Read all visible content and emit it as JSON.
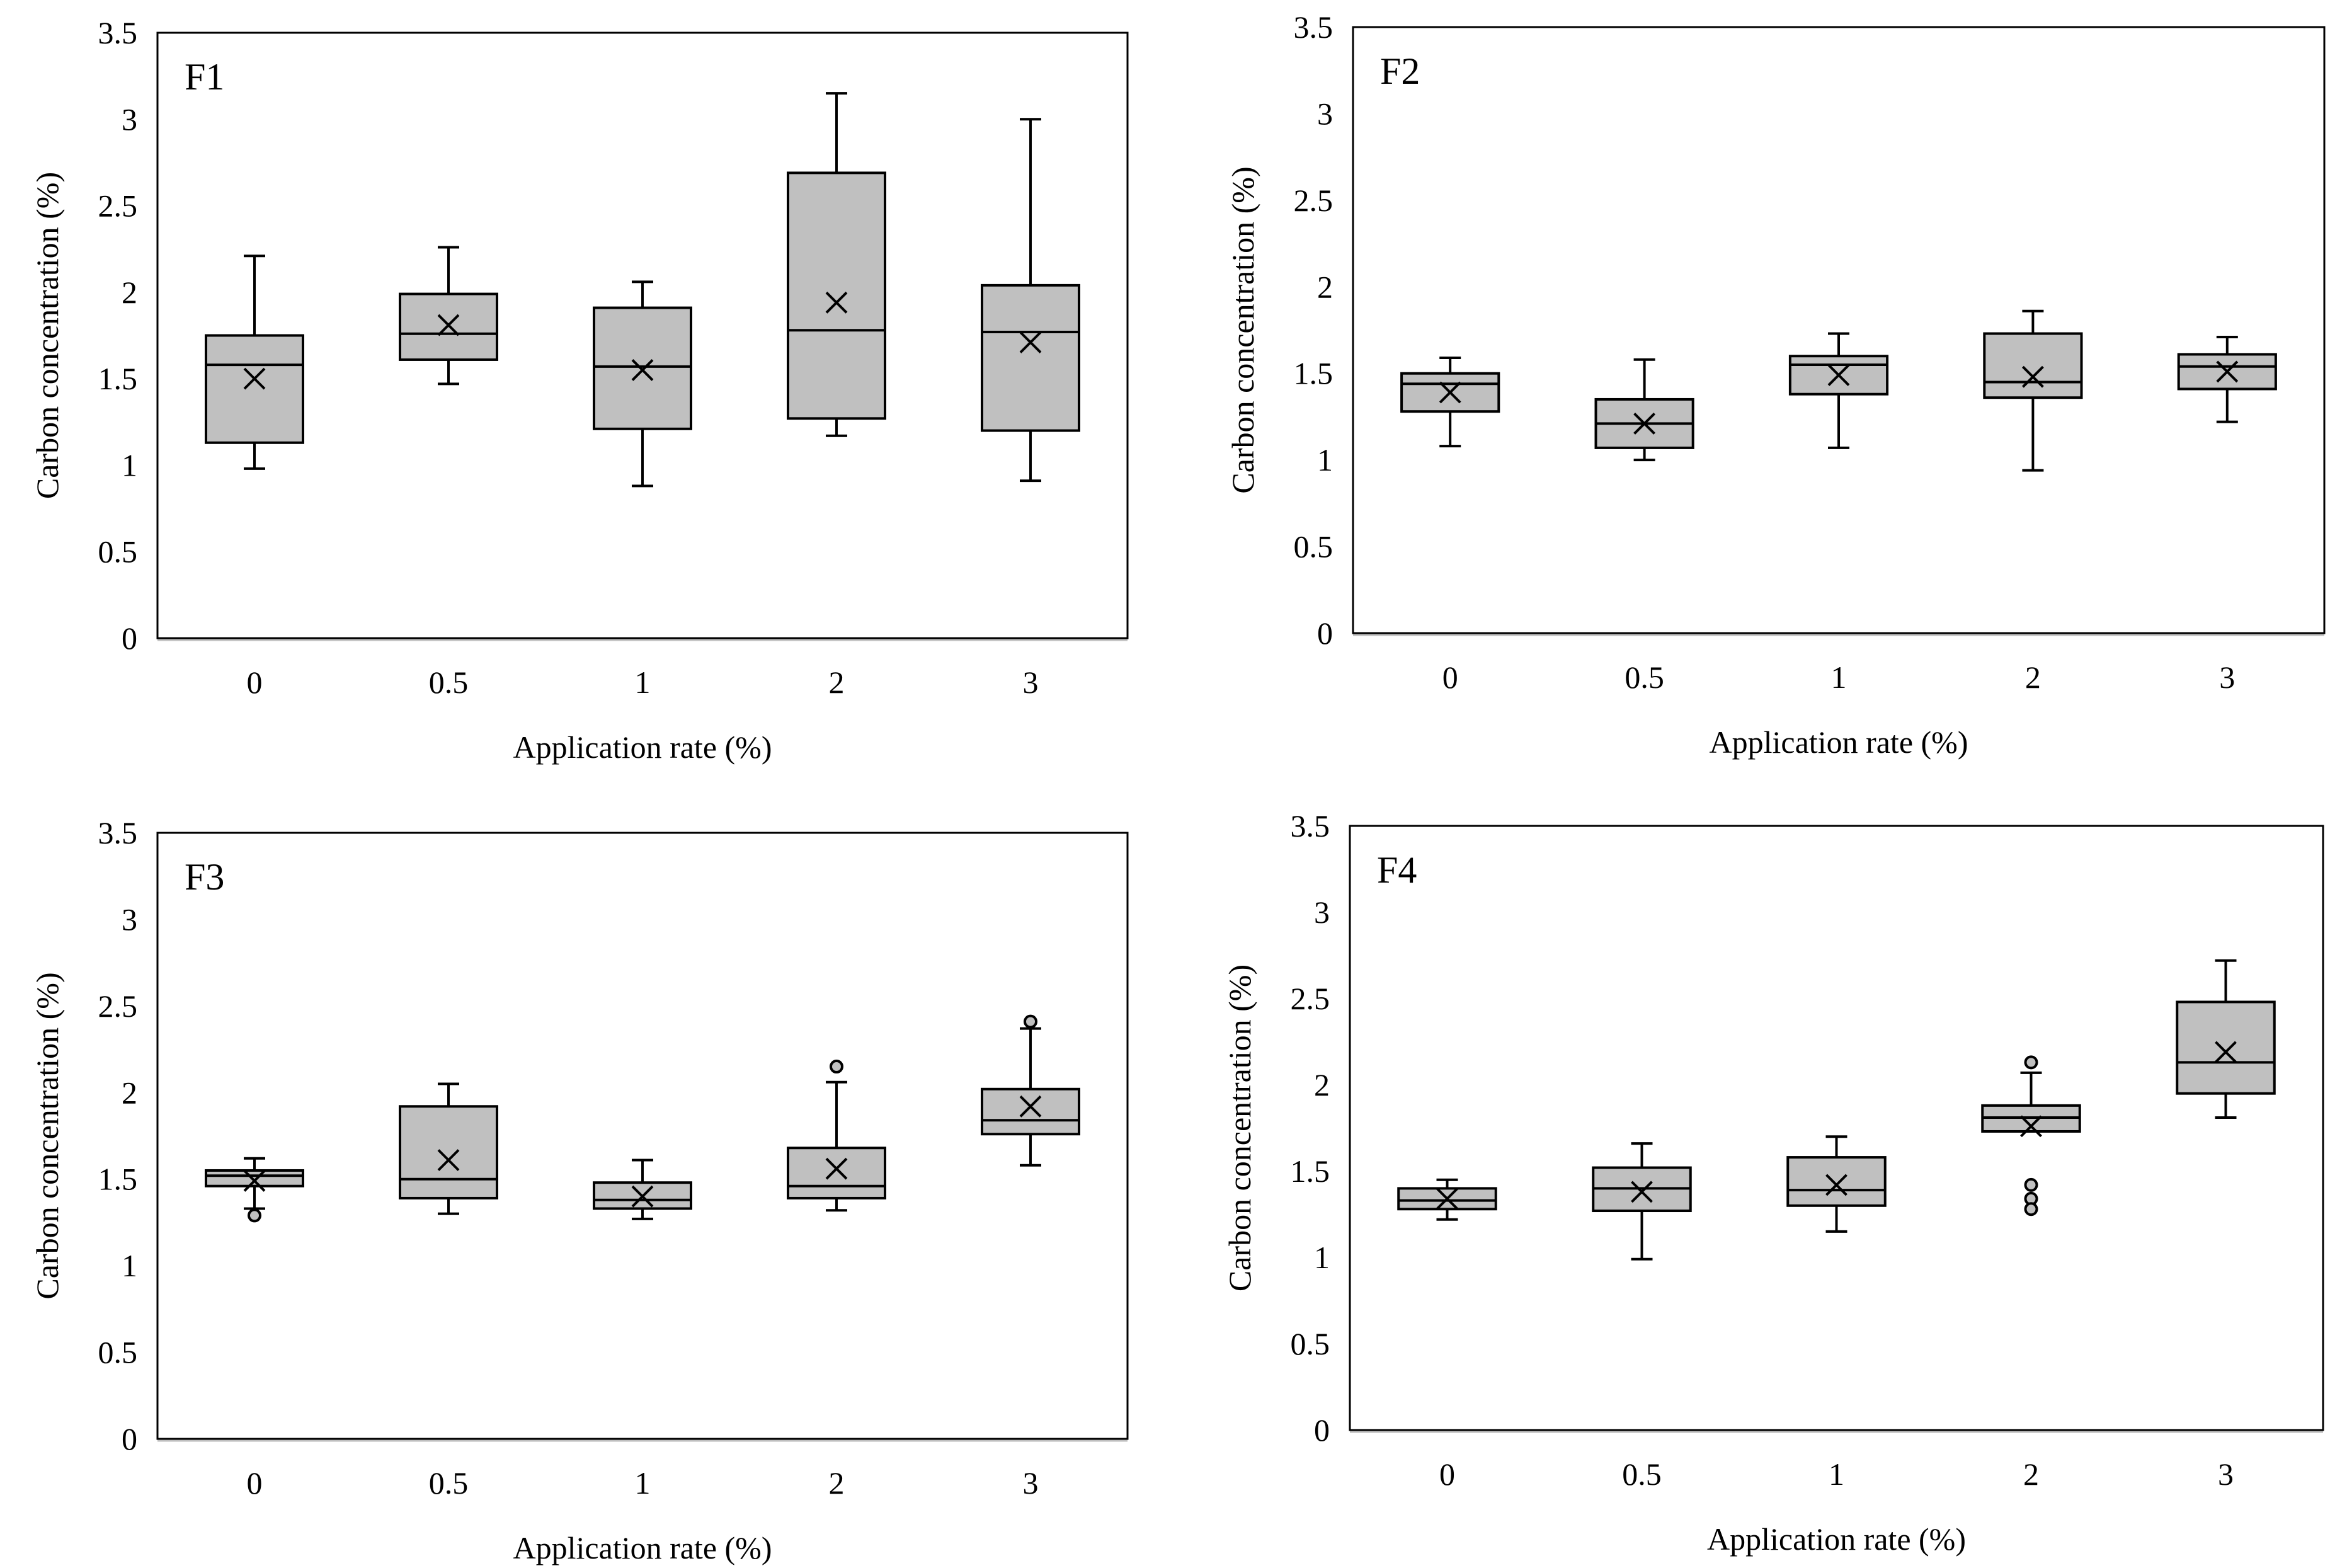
{
  "figure": {
    "box_fill": "#c0c0c0",
    "stroke_color": "#000000",
    "background": "#ffffff"
  },
  "chart_data": [
    {
      "type": "box",
      "panel": "F1",
      "xlabel": "Application rate (%)",
      "ylabel": "Carbon concentration (%)",
      "ylim": [
        0,
        3.5
      ],
      "yticks": [
        "0",
        "0.5",
        "1",
        "1.5",
        "2",
        "2.5",
        "3",
        "3.5"
      ],
      "categories": [
        "0",
        "0.5",
        "1",
        "2",
        "3"
      ],
      "boxes": [
        {
          "category": "0",
          "whisker_low": 0.98,
          "q1": 1.13,
          "median": 1.58,
          "q3": 1.75,
          "whisker_high": 2.21,
          "mean": 1.5,
          "outliers": []
        },
        {
          "category": "0.5",
          "whisker_low": 1.47,
          "q1": 1.61,
          "median": 1.76,
          "q3": 1.99,
          "whisker_high": 2.26,
          "mean": 1.81,
          "outliers": []
        },
        {
          "category": "1",
          "whisker_low": 0.88,
          "q1": 1.21,
          "median": 1.57,
          "q3": 1.91,
          "whisker_high": 2.06,
          "mean": 1.55,
          "outliers": []
        },
        {
          "category": "2",
          "whisker_low": 1.17,
          "q1": 1.27,
          "median": 1.78,
          "q3": 2.69,
          "whisker_high": 3.15,
          "mean": 1.94,
          "outliers": []
        },
        {
          "category": "3",
          "whisker_low": 0.91,
          "q1": 1.2,
          "median": 1.77,
          "q3": 2.04,
          "whisker_high": 3.0,
          "mean": 1.71,
          "outliers": []
        }
      ]
    },
    {
      "type": "box",
      "panel": "F2",
      "xlabel": "Application rate (%)",
      "ylabel": "Carbon concentration (%)",
      "ylim": [
        0,
        3.5
      ],
      "yticks": [
        "0",
        "0.5",
        "1",
        "1.5",
        "2",
        "2.5",
        "3",
        "3.5"
      ],
      "categories": [
        "0",
        "0.5",
        "1",
        "2",
        "3"
      ],
      "boxes": [
        {
          "category": "0",
          "whisker_low": 1.08,
          "q1": 1.28,
          "median": 1.44,
          "q3": 1.5,
          "whisker_high": 1.59,
          "mean": 1.39,
          "outliers": []
        },
        {
          "category": "0.5",
          "whisker_low": 1.0,
          "q1": 1.07,
          "median": 1.21,
          "q3": 1.35,
          "whisker_high": 1.58,
          "mean": 1.21,
          "outliers": []
        },
        {
          "category": "1",
          "whisker_low": 1.07,
          "q1": 1.38,
          "median": 1.55,
          "q3": 1.6,
          "whisker_high": 1.73,
          "mean": 1.49,
          "outliers": []
        },
        {
          "category": "2",
          "whisker_low": 0.94,
          "q1": 1.36,
          "median": 1.45,
          "q3": 1.73,
          "whisker_high": 1.86,
          "mean": 1.48,
          "outliers": []
        },
        {
          "category": "3",
          "whisker_low": 1.22,
          "q1": 1.41,
          "median": 1.54,
          "q3": 1.61,
          "whisker_high": 1.71,
          "mean": 1.51,
          "outliers": []
        }
      ]
    },
    {
      "type": "box",
      "panel": "F3",
      "xlabel": "Application rate (%)",
      "ylabel": "Carbon concentration (%)",
      "ylim": [
        0,
        3.5
      ],
      "yticks": [
        "0",
        "0.5",
        "1",
        "1.5",
        "2",
        "2.5",
        "3",
        "3.5"
      ],
      "categories": [
        "0",
        "0.5",
        "1",
        "2",
        "3"
      ],
      "boxes": [
        {
          "category": "0",
          "whisker_low": 1.33,
          "q1": 1.46,
          "median": 1.52,
          "q3": 1.55,
          "whisker_high": 1.62,
          "mean": 1.49,
          "outliers": [
            1.29
          ]
        },
        {
          "category": "0.5",
          "whisker_low": 1.3,
          "q1": 1.39,
          "median": 1.5,
          "q3": 1.92,
          "whisker_high": 2.05,
          "mean": 1.61,
          "outliers": []
        },
        {
          "category": "1",
          "whisker_low": 1.27,
          "q1": 1.33,
          "median": 1.38,
          "q3": 1.48,
          "whisker_high": 1.61,
          "mean": 1.4,
          "outliers": []
        },
        {
          "category": "2",
          "whisker_low": 1.32,
          "q1": 1.39,
          "median": 1.46,
          "q3": 1.68,
          "whisker_high": 2.06,
          "mean": 1.56,
          "outliers": [
            2.15
          ]
        },
        {
          "category": "3",
          "whisker_low": 1.58,
          "q1": 1.76,
          "median": 1.84,
          "q3": 2.02,
          "whisker_high": 2.37,
          "mean": 1.92,
          "outliers": [
            2.41
          ]
        }
      ]
    },
    {
      "type": "box",
      "panel": "F4",
      "xlabel": "Application rate (%)",
      "ylabel": "Carbon concentration (%)",
      "ylim": [
        0,
        3.5
      ],
      "yticks": [
        "0",
        "0.5",
        "1",
        "1.5",
        "2",
        "2.5",
        "3",
        "3.5"
      ],
      "categories": [
        "0",
        "0.5",
        "1",
        "2",
        "3"
      ],
      "boxes": [
        {
          "category": "0",
          "whisker_low": 1.22,
          "q1": 1.28,
          "median": 1.33,
          "q3": 1.4,
          "whisker_high": 1.45,
          "mean": 1.34,
          "outliers": []
        },
        {
          "category": "0.5",
          "whisker_low": 0.99,
          "q1": 1.27,
          "median": 1.4,
          "q3": 1.52,
          "whisker_high": 1.66,
          "mean": 1.38,
          "outliers": []
        },
        {
          "category": "1",
          "whisker_low": 1.15,
          "q1": 1.3,
          "median": 1.39,
          "q3": 1.58,
          "whisker_high": 1.7,
          "mean": 1.42,
          "outliers": []
        },
        {
          "category": "2",
          "whisker_low": 1.73,
          "q1": 1.73,
          "median": 1.81,
          "q3": 1.88,
          "whisker_high": 2.07,
          "mean": 1.76,
          "outliers": [
            2.13,
            1.42,
            1.34,
            1.28
          ]
        },
        {
          "category": "3",
          "whisker_low": 1.81,
          "q1": 1.95,
          "median": 2.13,
          "q3": 2.48,
          "whisker_high": 2.72,
          "mean": 2.19,
          "outliers": []
        }
      ]
    }
  ]
}
